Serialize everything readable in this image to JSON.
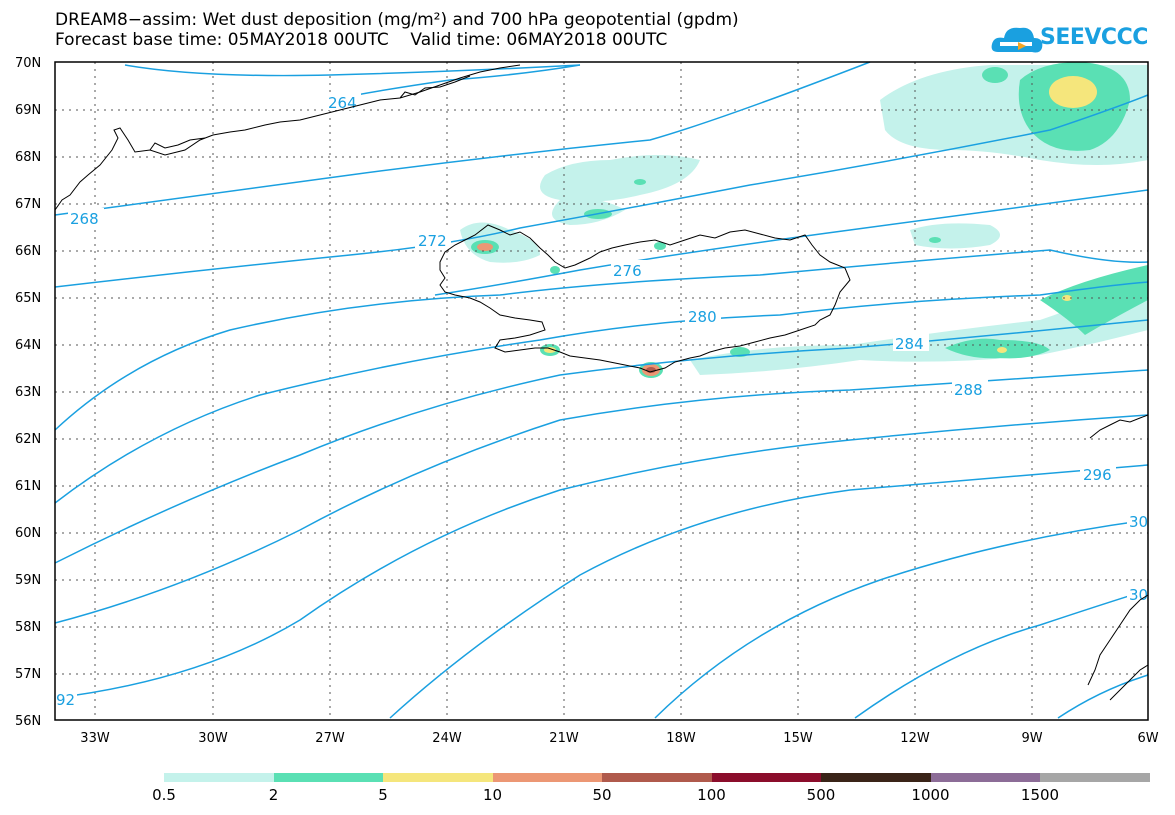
{
  "title_line1": "DREAM8−assim: Wet dust deposition (mg/m²) and 700 hPa geopotential (gpdm)",
  "title_line2": "Forecast base time: 05MAY2018 00UTC    Valid time: 06MAY2018 00UTC",
  "logo_text": "SEEVCCC",
  "lat_labels": [
    "70N",
    "69N",
    "68N",
    "67N",
    "66N",
    "65N",
    "64N",
    "63N",
    "62N",
    "61N",
    "60N",
    "59N",
    "58N",
    "57N",
    "56N"
  ],
  "lon_labels": [
    "33W",
    "30W",
    "27W",
    "24W",
    "21W",
    "18W",
    "15W",
    "12W",
    "9W",
    "6W"
  ],
  "contour_labels": [
    "264",
    "268",
    "272",
    "276",
    "280",
    "284",
    "288",
    "296",
    "30",
    "30",
    "92"
  ],
  "colorbar": {
    "colors": [
      "#c4f2eb",
      "#5ae0b4",
      "#f5e67c",
      "#ec9774",
      "#b05a4c",
      "#8b0d2b",
      "#3a2418",
      "#8c6c97",
      "#a6a6a6"
    ],
    "labels": [
      "0.5",
      "2",
      "5",
      "10",
      "50",
      "100",
      "500",
      "1000",
      "1500"
    ]
  },
  "colors": {
    "contour": "#1aa0e0",
    "coast": "#000000"
  }
}
